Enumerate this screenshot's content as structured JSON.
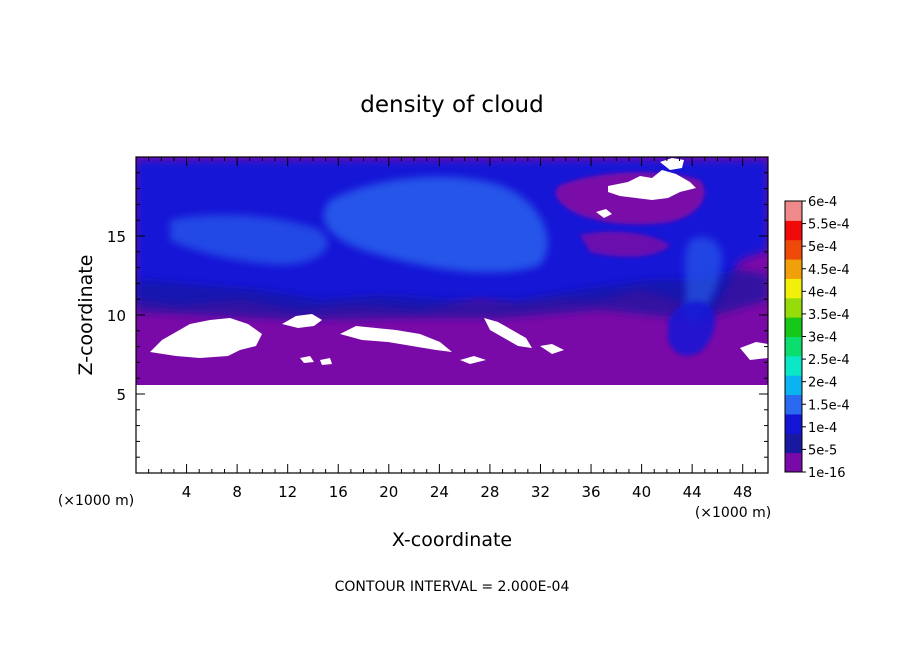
{
  "chart_data": {
    "type": "heatmap",
    "title": "density of cloud",
    "xlabel": "X-coordinate",
    "ylabel": "Z-coordinate",
    "x_unit": "(×1000 m)",
    "y_unit": "(×1000 m)",
    "xlim": [
      0,
      50
    ],
    "ylim": [
      0,
      20
    ],
    "x_ticks": [
      4,
      8,
      12,
      16,
      20,
      24,
      28,
      32,
      36,
      40,
      44,
      48
    ],
    "y_ticks": [
      5,
      10,
      15
    ],
    "footnote": "CONTOUR INTERVAL = 2.000E-04",
    "colorbar": {
      "labels": [
        "1e-16",
        "5e-5",
        "1e-4",
        "1.5e-4",
        "2e-4",
        "2.5e-4",
        "3e-4",
        "3.5e-4",
        "4e-4",
        "4.5e-4",
        "5e-4",
        "5.5e-4",
        "6e-4"
      ],
      "colors": [
        "#7a0aa8",
        "#1818a0",
        "#1414d6",
        "#2a6af0",
        "#0ab4f0",
        "#0ae8c8",
        "#0ade6e",
        "#18c818",
        "#96dc0a",
        "#f0f00a",
        "#f0a00a",
        "#f04a0a",
        "#f00a0a",
        "#f08a8a"
      ]
    },
    "cloud_field": {
      "cloud_base_km": 5.6,
      "cloud_top_km": 19.6,
      "max_value": 0.00015
    }
  }
}
